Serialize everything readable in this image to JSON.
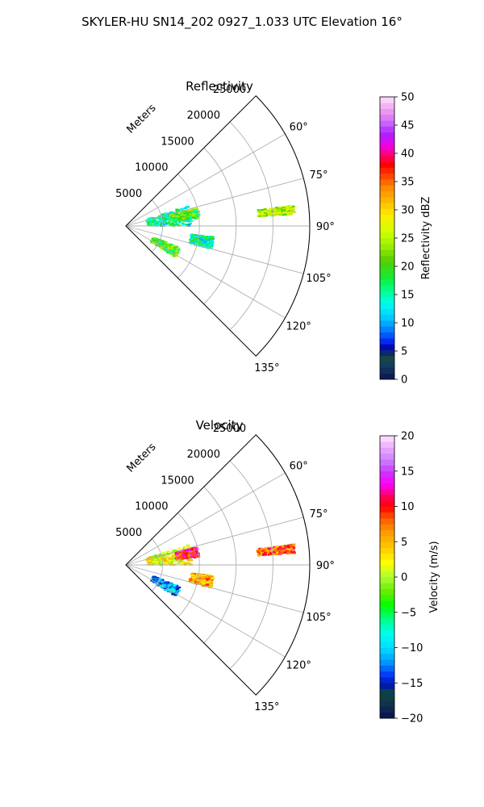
{
  "figure_title": "SKYLER-HU  SN14_202  0927_1.033 UTC Elevation 16°",
  "chart_data": [
    {
      "type": "polar-sector",
      "title": "Reflectivity",
      "radial_axis_label": "Meters",
      "radial_ticks": [
        5000,
        10000,
        15000,
        20000,
        25000
      ],
      "radial_tick_labels": [
        "5000",
        "10000",
        "15000",
        "20000",
        "25000"
      ],
      "rlim": [
        0,
        25000
      ],
      "angle_ticks": [
        60,
        75,
        90,
        105,
        120,
        135
      ],
      "angle_tick_labels": [
        "60°",
        "75°",
        "90°",
        "105°",
        "120°",
        "135°"
      ],
      "angle_range": [
        45,
        135
      ],
      "colorbar": {
        "label": "Reflectivity dBZ",
        "range": [
          0,
          50
        ],
        "ticks": [
          0,
          5,
          10,
          15,
          20,
          25,
          30,
          35,
          40,
          45,
          50
        ],
        "tick_labels": [
          "0",
          "5",
          "10",
          "15",
          "20",
          "25",
          "30",
          "35",
          "40",
          "45",
          "50"
        ],
        "colormap": "pyart_HomeyerRainbow"
      },
      "echoes": [
        {
          "region": "band NE of origin",
          "az_range": [
            72,
            90
          ],
          "r_range": [
            3000,
            9000
          ],
          "value_approx": 15
        },
        {
          "region": "core near 80°",
          "az_range": [
            76,
            84
          ],
          "r_range": [
            6000,
            10000
          ],
          "value_approx": 20
        },
        {
          "region": "cluster near 100°",
          "az_range": [
            97,
            105
          ],
          "r_range": [
            9000,
            12000
          ],
          "value_approx": 15
        },
        {
          "region": "cluster SW",
          "az_range": [
            112,
            122
          ],
          "r_range": [
            4000,
            8000
          ],
          "value_approx": 20
        },
        {
          "region": "line near 85°",
          "az_range": [
            83,
            86
          ],
          "r_range": [
            18000,
            23000
          ],
          "value_approx": 25
        }
      ]
    },
    {
      "type": "polar-sector",
      "title": "Velocity",
      "radial_axis_label": "Meters",
      "radial_ticks": [
        5000,
        10000,
        15000,
        20000,
        25000
      ],
      "radial_tick_labels": [
        "5000",
        "10000",
        "15000",
        "20000",
        "25000"
      ],
      "rlim": [
        0,
        25000
      ],
      "angle_ticks": [
        60,
        75,
        90,
        105,
        120,
        135
      ],
      "angle_tick_labels": [
        "60°",
        "75°",
        "90°",
        "105°",
        "120°",
        "135°"
      ],
      "angle_range": [
        45,
        135
      ],
      "colorbar": {
        "label": "Velocity (m/s)",
        "range": [
          -20,
          20
        ],
        "ticks": [
          -20,
          -15,
          -10,
          -5,
          0,
          5,
          10,
          15,
          20
        ],
        "tick_labels": [
          "−20",
          "−15",
          "−10",
          "−5",
          "0",
          "5",
          "10",
          "15",
          "20"
        ],
        "colormap": "pyart_BuDRd18"
      },
      "echoes": [
        {
          "region": "band NE of origin",
          "az_range": [
            72,
            90
          ],
          "r_range": [
            3000,
            9000
          ],
          "value_approx": 2
        },
        {
          "region": "core near 80°",
          "az_range": [
            76,
            84
          ],
          "r_range": [
            7000,
            10000
          ],
          "value_approx": 10
        },
        {
          "region": "cluster near 100°",
          "az_range": [
            97,
            105
          ],
          "r_range": [
            9000,
            12000
          ],
          "value_approx": 5
        },
        {
          "region": "cluster SW",
          "az_range": [
            112,
            122
          ],
          "r_range": [
            4000,
            8000
          ],
          "value_approx": -12
        },
        {
          "region": "line near 85°",
          "az_range": [
            83,
            86
          ],
          "r_range": [
            18000,
            23000
          ],
          "value_approx": 8
        }
      ]
    }
  ]
}
